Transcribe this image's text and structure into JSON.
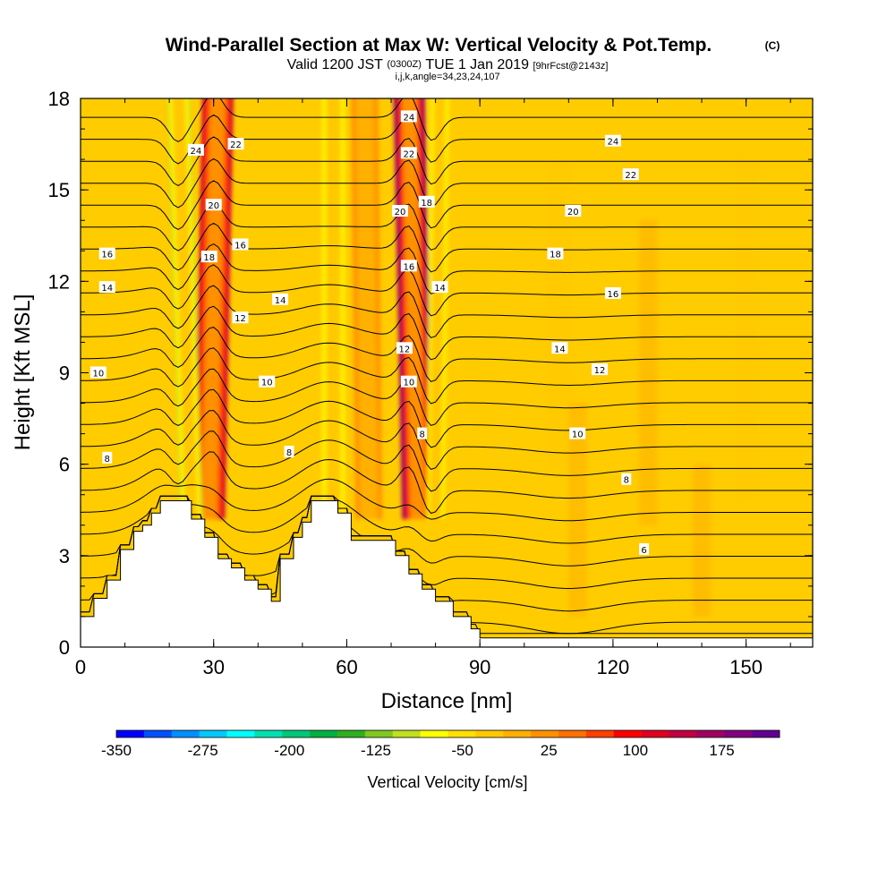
{
  "header": {
    "title_main": "Wind-Parallel Section at Max W: Vertical Velocity & Pot.Temp.",
    "title_mark": "(C)",
    "valid_a": "Valid 1200 JST",
    "valid_b": "(0300Z)",
    "valid_c": "TUE 1 Jan 2019",
    "valid_d": "[9hrFcst@2143z]",
    "params": "i,j,k,angle=34,23,24,107"
  },
  "colors": {
    "background": "#FFCC00",
    "terrain": "#FFFFFF",
    "contour": "#000000",
    "colorbar": [
      "#0000FF",
      "#0050FF",
      "#0090FF",
      "#00C8FF",
      "#00FFFF",
      "#00E0B0",
      "#00C878",
      "#00B040",
      "#30B020",
      "#80C820",
      "#C0E020",
      "#FFFF00",
      "#FFE000",
      "#FFC800",
      "#FFB000",
      "#FF9000",
      "#FF7000",
      "#FF4000",
      "#FF0000",
      "#E00020",
      "#C00040",
      "#A00060",
      "#800080",
      "#600090"
    ]
  },
  "chart_data": {
    "type": "heatmap",
    "x": {
      "label": "Distance [nm]",
      "range": [
        0,
        165
      ],
      "ticks": [
        0,
        30,
        60,
        90,
        120,
        150
      ],
      "tick_labels": [
        "0",
        "30",
        "60",
        "90",
        "120",
        "150"
      ]
    },
    "y": {
      "label": "Height [Kft MSL]",
      "range": [
        0,
        18
      ],
      "ticks": [
        0,
        3,
        6,
        9,
        12,
        15,
        18
      ],
      "tick_labels": [
        "0",
        "3",
        "6",
        "9",
        "12",
        "15",
        "18"
      ]
    },
    "colorbar": {
      "label": "Vertical Velocity [cm/s]",
      "range": [
        -350,
        225
      ],
      "step": 25,
      "tick_values": [
        -350,
        -275,
        -200,
        -125,
        -50,
        25,
        100,
        175
      ],
      "tick_labels": [
        "-350",
        "-275",
        "-200",
        "-125",
        "-50",
        "25",
        "100",
        "175"
      ]
    },
    "terrain": [
      [
        0,
        1
      ],
      [
        3,
        1
      ],
      [
        3,
        1.6
      ],
      [
        6,
        1.6
      ],
      [
        6,
        2.2
      ],
      [
        9,
        2.2
      ],
      [
        9,
        3.2
      ],
      [
        12,
        3.2
      ],
      [
        12,
        3.8
      ],
      [
        14,
        3.8
      ],
      [
        14,
        4
      ],
      [
        16,
        4
      ],
      [
        16,
        4.4
      ],
      [
        18,
        4.4
      ],
      [
        18,
        4.8
      ],
      [
        25,
        4.8
      ],
      [
        25,
        4.2
      ],
      [
        28,
        4.2
      ],
      [
        28,
        3.6
      ],
      [
        31,
        3.6
      ],
      [
        31,
        2.9
      ],
      [
        34,
        2.9
      ],
      [
        34,
        2.6
      ],
      [
        37,
        2.6
      ],
      [
        37,
        2.2
      ],
      [
        40,
        2.2
      ],
      [
        40,
        1.9
      ],
      [
        43,
        1.9
      ],
      [
        43,
        1.5
      ],
      [
        45,
        1.5
      ],
      [
        45,
        2.9
      ],
      [
        48,
        2.9
      ],
      [
        48,
        3.6
      ],
      [
        50,
        3.6
      ],
      [
        50,
        4.1
      ],
      [
        52,
        4.1
      ],
      [
        52,
        4.8
      ],
      [
        58,
        4.8
      ],
      [
        58,
        4.4
      ],
      [
        61,
        4.4
      ],
      [
        61,
        3.5
      ],
      [
        71,
        3.5
      ],
      [
        71,
        3
      ],
      [
        74,
        3
      ],
      [
        74,
        2.4
      ],
      [
        77,
        2.4
      ],
      [
        77,
        1.9
      ],
      [
        80,
        1.9
      ],
      [
        80,
        1.5
      ],
      [
        84,
        1.5
      ],
      [
        84,
        1
      ],
      [
        88,
        1
      ],
      [
        88,
        0.6
      ],
      [
        90,
        0.6
      ],
      [
        90,
        0.3
      ],
      [
        165,
        0.3
      ]
    ],
    "w_field": [
      {
        "type": "updraft",
        "x_base": 29,
        "x_top": 31,
        "value": 150,
        "width": 3.5
      },
      {
        "type": "downdraft",
        "x_base": 25,
        "x_top": 22,
        "value": -100,
        "width": 2.5
      },
      {
        "type": "updraft",
        "x_base": 76,
        "x_top": 74,
        "value": 200,
        "width": 3.5
      },
      {
        "type": "downdraft",
        "x_base": 80,
        "x_top": 81,
        "value": -75,
        "width": 2.0
      },
      {
        "type": "downdraft",
        "x_base": 57,
        "x_top": 57,
        "value": -60,
        "width": 2.5
      },
      {
        "type": "updraft",
        "x_base": 65,
        "x_top": 64,
        "value": 40,
        "width": 3.0
      }
    ],
    "theta_levels": [
      4,
      5,
      6,
      7,
      8,
      9,
      10,
      11,
      12,
      13,
      14,
      15,
      16,
      17,
      18,
      19,
      20,
      21,
      22,
      23,
      24,
      25,
      26,
      27,
      28
    ],
    "contour_labels": [
      {
        "text": "24",
        "x": 26,
        "y": 16.3
      },
      {
        "text": "22",
        "x": 35,
        "y": 16.5
      },
      {
        "text": "20",
        "x": 30,
        "y": 14.5
      },
      {
        "text": "18",
        "x": 29,
        "y": 12.8
      },
      {
        "text": "16",
        "x": 36,
        "y": 13.2
      },
      {
        "text": "16",
        "x": 6,
        "y": 12.9
      },
      {
        "text": "14",
        "x": 6,
        "y": 11.8
      },
      {
        "text": "14",
        "x": 45,
        "y": 11.4
      },
      {
        "text": "12",
        "x": 36,
        "y": 10.8
      },
      {
        "text": "10",
        "x": 42,
        "y": 8.7
      },
      {
        "text": "10",
        "x": 4,
        "y": 9.0
      },
      {
        "text": "8",
        "x": 47,
        "y": 6.4
      },
      {
        "text": "8",
        "x": 6,
        "y": 6.2
      },
      {
        "text": "24",
        "x": 74,
        "y": 17.4
      },
      {
        "text": "22",
        "x": 74,
        "y": 16.2
      },
      {
        "text": "20",
        "x": 72,
        "y": 14.3
      },
      {
        "text": "18",
        "x": 78,
        "y": 14.6
      },
      {
        "text": "16",
        "x": 74,
        "y": 12.5
      },
      {
        "text": "14",
        "x": 81,
        "y": 11.8
      },
      {
        "text": "12",
        "x": 73,
        "y": 9.8
      },
      {
        "text": "10",
        "x": 74,
        "y": 8.7
      },
      {
        "text": "8",
        "x": 77,
        "y": 7.0
      },
      {
        "text": "24",
        "x": 120,
        "y": 16.6
      },
      {
        "text": "22",
        "x": 124,
        "y": 15.5
      },
      {
        "text": "20",
        "x": 111,
        "y": 14.3
      },
      {
        "text": "18",
        "x": 107,
        "y": 12.9
      },
      {
        "text": "16",
        "x": 120,
        "y": 11.6
      },
      {
        "text": "14",
        "x": 108,
        "y": 9.8
      },
      {
        "text": "12",
        "x": 117,
        "y": 9.1
      },
      {
        "text": "10",
        "x": 112,
        "y": 7.0
      },
      {
        "text": "8",
        "x": 123,
        "y": 5.5
      },
      {
        "text": "6",
        "x": 127,
        "y": 3.2
      }
    ]
  }
}
